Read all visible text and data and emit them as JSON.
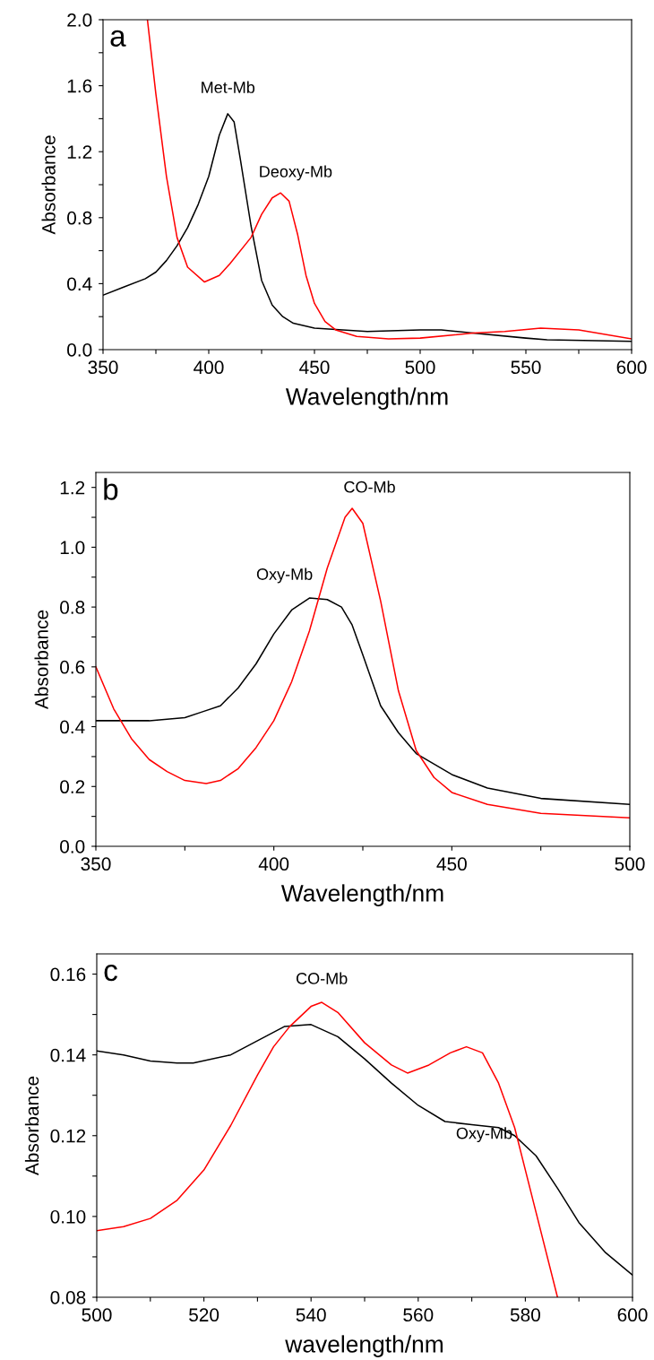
{
  "chart_data": [
    {
      "type": "line",
      "xlabel": "Wavelength/nm",
      "ylabel": "Absorbance",
      "xlim": [
        350,
        600
      ],
      "ylim": [
        0,
        2.0
      ],
      "xticks": [
        350,
        {
          "value": 375,
          "label": null
        },
        400,
        {
          "value": 425,
          "label": null
        },
        450,
        {
          "value": 475,
          "label": null
        },
        500,
        {
          "value": 525,
          "label": null
        },
        550,
        {
          "value": 575,
          "label": null
        },
        600
      ],
      "yticks": [
        {
          "value": 0,
          "label": "0.0"
        },
        {
          "value": 0.2,
          "label": null
        },
        {
          "value": 0.4,
          "label": "0.4"
        },
        {
          "value": 0.6,
          "label": null
        },
        {
          "value": 0.8,
          "label": "0.8"
        },
        {
          "value": 1.0,
          "label": null
        },
        {
          "value": 1.2,
          "label": "1.2"
        },
        {
          "value": 1.4,
          "label": null
        },
        {
          "value": 1.6,
          "label": "1.6"
        },
        {
          "value": 1.8,
          "label": null
        },
        {
          "value": 2.0,
          "label": "2.0"
        }
      ],
      "grid": false,
      "marker": "none",
      "line_style": "solid",
      "annotations": [
        "a",
        {
          "text": "Met-Mb",
          "x": 409,
          "y": 1.43
        },
        {
          "text": "Deoxy-Mb",
          "x": 434,
          "y": 0.95
        }
      ],
      "series": [
        {
          "color": "#000000",
          "x": [
            350,
            360,
            370,
            375,
            380,
            385,
            390,
            395,
            400,
            405,
            409,
            412,
            415,
            420,
            425,
            430,
            435,
            440,
            450,
            475,
            500,
            510,
            525,
            550,
            560,
            600
          ],
          "values": [
            0.33,
            0.38,
            0.43,
            0.47,
            0.54,
            0.63,
            0.74,
            0.88,
            1.05,
            1.3,
            1.43,
            1.38,
            1.15,
            0.75,
            0.42,
            0.27,
            0.2,
            0.16,
            0.13,
            0.11,
            0.12,
            0.12,
            0.1,
            0.07,
            0.06,
            0.05
          ]
        },
        {
          "color": "#ff0000",
          "x": [
            371,
            375,
            380,
            385,
            390,
            398,
            405,
            410,
            420,
            425,
            430,
            434,
            438,
            442,
            446,
            450,
            455,
            460,
            470,
            485,
            500,
            525,
            540,
            557,
            575,
            600
          ],
          "values": [
            2.0,
            1.55,
            1.05,
            0.68,
            0.5,
            0.41,
            0.45,
            0.52,
            0.68,
            0.82,
            0.92,
            0.95,
            0.9,
            0.7,
            0.45,
            0.28,
            0.17,
            0.12,
            0.08,
            0.065,
            0.07,
            0.1,
            0.11,
            0.13,
            0.12,
            0.065
          ]
        }
      ]
    },
    {
      "type": "line",
      "xlabel": "Wavelength/nm",
      "ylabel": "Absorbance",
      "xlim": [
        350,
        500
      ],
      "ylim": [
        0,
        1.25
      ],
      "xticks": [
        350,
        {
          "value": 375,
          "label": null
        },
        400,
        {
          "value": 425,
          "label": null
        },
        450,
        {
          "value": 475,
          "label": null
        },
        500
      ],
      "yticks": [
        {
          "value": 0,
          "label": "0.0"
        },
        {
          "value": 0.1,
          "label": null
        },
        {
          "value": 0.2,
          "label": "0.2"
        },
        {
          "value": 0.3,
          "label": null
        },
        {
          "value": 0.4,
          "label": "0.4"
        },
        {
          "value": 0.5,
          "label": null
        },
        {
          "value": 0.6,
          "label": "0.6"
        },
        {
          "value": 0.7,
          "label": null
        },
        {
          "value": 0.8,
          "label": "0.8"
        },
        {
          "value": 0.9,
          "label": null
        },
        {
          "value": 1.0,
          "label": "1.0"
        },
        {
          "value": 1.1,
          "label": null
        },
        {
          "value": 1.2,
          "label": "1.2"
        }
      ],
      "grid": false,
      "marker": "none",
      "line_style": "solid",
      "annotations": [
        "b",
        {
          "text": "Oxy-Mb",
          "x": 410,
          "y": 0.83
        },
        {
          "text": "CO-Mb",
          "x": 422,
          "y": 1.13
        }
      ],
      "series": [
        {
          "color": "#000000",
          "x": [
            350,
            365,
            375,
            380,
            385,
            390,
            395,
            400,
            405,
            410,
            415,
            419,
            422,
            425,
            430,
            435,
            440,
            450,
            460,
            475,
            500
          ],
          "values": [
            0.42,
            0.42,
            0.43,
            0.45,
            0.47,
            0.53,
            0.61,
            0.71,
            0.79,
            0.83,
            0.825,
            0.8,
            0.74,
            0.64,
            0.47,
            0.38,
            0.31,
            0.24,
            0.195,
            0.16,
            0.14
          ]
        },
        {
          "color": "#ff0000",
          "x": [
            350,
            355,
            360,
            365,
            370,
            375,
            381,
            385,
            390,
            395,
            400,
            405,
            410,
            415,
            420,
            422,
            425,
            430,
            435,
            440,
            445,
            450,
            460,
            475,
            500
          ],
          "values": [
            0.6,
            0.46,
            0.36,
            0.29,
            0.25,
            0.22,
            0.21,
            0.22,
            0.26,
            0.33,
            0.42,
            0.55,
            0.72,
            0.93,
            1.1,
            1.13,
            1.08,
            0.82,
            0.52,
            0.32,
            0.23,
            0.18,
            0.14,
            0.11,
            0.095
          ]
        }
      ]
    },
    {
      "type": "line",
      "xlabel": "wavelength/nm",
      "ylabel": "Absorbance",
      "xlim": [
        500,
        600
      ],
      "ylim": [
        0.08,
        0.165
      ],
      "xticks": [
        500,
        {
          "value": 510,
          "label": null
        },
        520,
        {
          "value": 530,
          "label": null
        },
        540,
        {
          "value": 550,
          "label": null
        },
        560,
        {
          "value": 570,
          "label": null
        },
        580,
        {
          "value": 590,
          "label": null
        },
        600
      ],
      "yticks": [
        {
          "value": 0.08,
          "label": "0.08"
        },
        {
          "value": 0.09,
          "label": null
        },
        {
          "value": 0.1,
          "label": "0.10"
        },
        {
          "value": 0.11,
          "label": null
        },
        {
          "value": 0.12,
          "label": "0.12"
        },
        {
          "value": 0.13,
          "label": null
        },
        {
          "value": 0.14,
          "label": "0.14"
        },
        {
          "value": 0.15,
          "label": null
        },
        {
          "value": 0.16,
          "label": "0.16"
        }
      ],
      "grid": false,
      "marker": "none",
      "line_style": "solid",
      "annotations": [
        "c",
        {
          "text": "CO-Mb",
          "x": 542,
          "y": 0.153
        },
        {
          "text": "Oxy-Mb",
          "x": 570,
          "y": 0.1227
        }
      ],
      "series": [
        {
          "color": "#000000",
          "x": [
            500,
            505,
            510,
            515,
            518,
            525,
            530,
            535,
            540,
            545,
            550,
            555,
            560,
            565,
            570,
            575,
            578,
            582,
            586,
            590,
            595,
            600
          ],
          "values": [
            0.141,
            0.14,
            0.1385,
            0.138,
            0.138,
            0.14,
            0.1435,
            0.147,
            0.1475,
            0.1445,
            0.139,
            0.133,
            0.1275,
            0.1235,
            0.1227,
            0.122,
            0.12,
            0.115,
            0.107,
            0.0985,
            0.091,
            0.0855
          ]
        },
        {
          "color": "#ff0000",
          "x": [
            500,
            505,
            510,
            515,
            520,
            525,
            530,
            533,
            536,
            540,
            542,
            545,
            550,
            555,
            558,
            562,
            566,
            569,
            572,
            575,
            578,
            582,
            586
          ],
          "values": [
            0.0965,
            0.0975,
            0.0995,
            0.104,
            0.1115,
            0.1225,
            0.135,
            0.142,
            0.147,
            0.152,
            0.153,
            0.1505,
            0.143,
            0.1375,
            0.1355,
            0.1375,
            0.1405,
            0.142,
            0.1405,
            0.133,
            0.122,
            0.101,
            0.08
          ]
        }
      ]
    }
  ]
}
